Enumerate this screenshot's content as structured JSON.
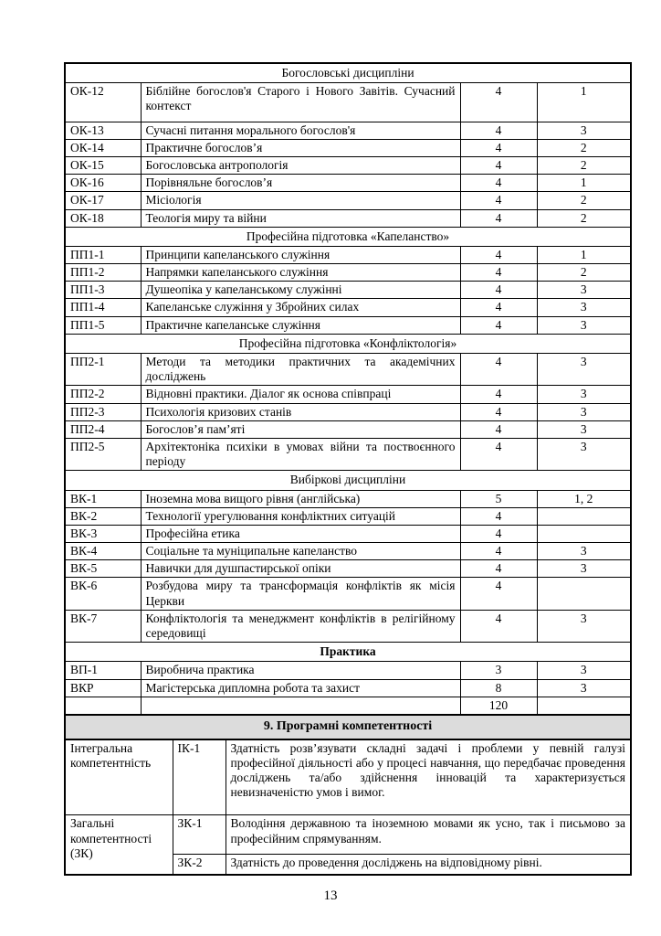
{
  "colors": {
    "section9_background": "#dcdcdc",
    "border": "#000000",
    "text": "#000000",
    "page_background": "#ffffff"
  },
  "main_table": {
    "rows": [
      {
        "type": "section",
        "label": "Богословські дисципліни"
      },
      {
        "type": "item",
        "code": "ОК-12",
        "name": "Біблійне богослов'я Старого і Нового Завітів. Сучасний контекст",
        "credits": "4",
        "semester": "1"
      },
      {
        "type": "item",
        "code": "ОК-13",
        "name": "Сучасні питання морального богослов'я",
        "credits": "4",
        "semester": "3"
      },
      {
        "type": "item",
        "code": "ОК-14",
        "name": "Практичне богослов’я",
        "credits": "4",
        "semester": "2"
      },
      {
        "type": "item",
        "code": "ОК-15",
        "name": "Богословська антропологія",
        "credits": "4",
        "semester": "2"
      },
      {
        "type": "item",
        "code": "ОК-16",
        "name": "Порівняльне богослов’я",
        "credits": "4",
        "semester": "1"
      },
      {
        "type": "item",
        "code": "ОК-17",
        "name": "Місіологія",
        "credits": "4",
        "semester": "2"
      },
      {
        "type": "item",
        "code": "ОК-18",
        "name": "Теологія миру та війни",
        "credits": "4",
        "semester": "2"
      },
      {
        "type": "section",
        "label": "Професійна підготовка «Капеланство»"
      },
      {
        "type": "item",
        "code": "ПП1-1",
        "name": "Принципи капеланського служіння",
        "credits": "4",
        "semester": "1"
      },
      {
        "type": "item",
        "code": "ПП1-2",
        "name": "Напрямки капеланського служіння",
        "credits": "4",
        "semester": "2"
      },
      {
        "type": "item",
        "code": "ПП1-3",
        "name": "Душеопіка у капеланському служінні",
        "credits": "4",
        "semester": "3"
      },
      {
        "type": "item",
        "code": "ПП1-4",
        "name": "Капеланське служіння у Збройних силах",
        "credits": "4",
        "semester": "3"
      },
      {
        "type": "item",
        "code": "ПП1-5",
        "name": "Практичне капеланське служіння",
        "credits": "4",
        "semester": "3"
      },
      {
        "type": "section",
        "label": "Професійна підготовка «Конфліктологія»"
      },
      {
        "type": "item",
        "code": "ПП2-1",
        "name": "Методи та методики практичних та академічних досліджень",
        "credits": "4",
        "semester": "3"
      },
      {
        "type": "item",
        "code": "ПП2-2",
        "name": "Відновні практики. Діалог як основа співпраці",
        "credits": "4",
        "semester": "3"
      },
      {
        "type": "item",
        "code": "ПП2-3",
        "name": "Психологія кризових станів",
        "credits": "4",
        "semester": "3"
      },
      {
        "type": "item",
        "code": "ПП2-4",
        "name": "Богослов’я пам’яті",
        "credits": "4",
        "semester": "3"
      },
      {
        "type": "item",
        "code": "ПП2-5",
        "name": "Архітектоніка психіки в умовах війни та поствоєнного періоду",
        "credits": "4",
        "semester": "3"
      },
      {
        "type": "section",
        "label": "Вибіркові дисципліни"
      },
      {
        "type": "item",
        "code": "ВК-1",
        "name": "Іноземна мова вищого рівня (англійська)",
        "credits": "5",
        "semester": "1, 2"
      },
      {
        "type": "item",
        "code": "ВК-2",
        "name": "Технології урегулювання конфліктних ситуацій",
        "credits": "4",
        "semester": ""
      },
      {
        "type": "item",
        "code": "ВК-3",
        "name": "Професійна етика",
        "credits": "4",
        "semester": ""
      },
      {
        "type": "item",
        "code": "ВК-4",
        "name": "Соціальне та муніципальне капеланство",
        "credits": "4",
        "semester": "3"
      },
      {
        "type": "item",
        "code": "ВК-5",
        "name": "Навички для душпастирської опіки",
        "credits": "4",
        "semester": "3"
      },
      {
        "type": "item",
        "code": "ВК-6",
        "name": "Розбудова миру та трансформація конфліктів як місія Церкви",
        "credits": "4",
        "semester": ""
      },
      {
        "type": "item",
        "code": "ВК-7",
        "name": "Конфліктологія та менеджмент конфліктів в релігійному середовищі",
        "credits": "4",
        "semester": "3"
      },
      {
        "type": "section",
        "label": "Практика",
        "bold": true
      },
      {
        "type": "item",
        "code": "ВП-1",
        "name": "Виробнича практика",
        "credits": "3",
        "semester": "3"
      },
      {
        "type": "item",
        "code": "ВКР",
        "name": "Магістерська дипломна робота та захист",
        "credits": "8",
        "semester": "3"
      },
      {
        "type": "total",
        "credits": "120"
      }
    ]
  },
  "competencies": {
    "title": "9. Програмні компетентності",
    "rows": [
      {
        "category": "Інтегральна компетентність",
        "code": "ІК-1",
        "text": "Здатність розв’язувати складні задачі і проблеми у певній галузі професійної діяльності або у процесі навчання, що передбачає проведення досліджень та/або здійснення інновацій та характеризується невизначеністю умов і вимог."
      },
      {
        "category": "Загальні компетентності (ЗК)",
        "code": "ЗК-1",
        "text": "Володіння державною та іноземною мовами як усно, так і письмово за професійним спрямуванням."
      },
      {
        "category": "",
        "code": "ЗК-2",
        "text": "Здатність до проведення досліджень на відповідному рівні."
      }
    ]
  },
  "footer": {
    "page_number": "13"
  }
}
